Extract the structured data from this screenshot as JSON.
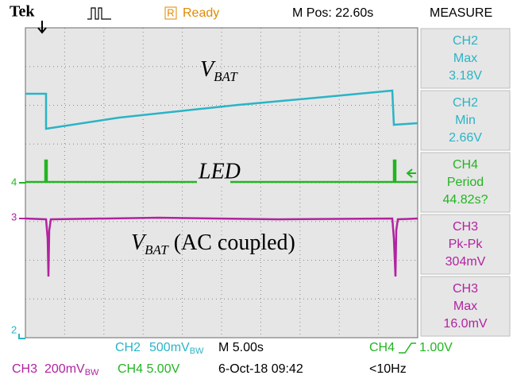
{
  "header": {
    "brand": "Tek",
    "status_icon": "R",
    "status": "Ready",
    "position": "M Pos: 22.60s",
    "panel_title": "MEASURE"
  },
  "channel_markers": [
    "4",
    "3",
    "2"
  ],
  "annotations": {
    "vbat_top": {
      "main": "V",
      "sub": "BAT"
    },
    "led": "LED",
    "vbat_ac": {
      "main": "V",
      "sub": "BAT",
      "rest": " (AC coupled)"
    }
  },
  "measurements": [
    {
      "channel": "CH2",
      "label": "Max",
      "value": "3.18V"
    },
    {
      "channel": "CH2",
      "label": "Min",
      "value": "2.66V"
    },
    {
      "channel": "CH4",
      "label": "Period",
      "value": "44.82s?"
    },
    {
      "channel": "CH3",
      "label": "Pk-Pk",
      "value": "304mV"
    },
    {
      "channel": "CH3",
      "label": "Max",
      "value": "16.0mV"
    }
  ],
  "footer": {
    "ch2": "CH2",
    "ch2_scale": "500mV",
    "ch2_bw": "BW",
    "timebase": "M 5.00s",
    "trig_ch": "CH4",
    "trig_level": "1.00V",
    "ch3": "CH3",
    "ch3_scale": "200mV",
    "ch3_bw": "BW",
    "ch4_scale": "CH4 5.00V",
    "date": "6-Oct-18 09:42",
    "freq": "<10Hz"
  }
}
